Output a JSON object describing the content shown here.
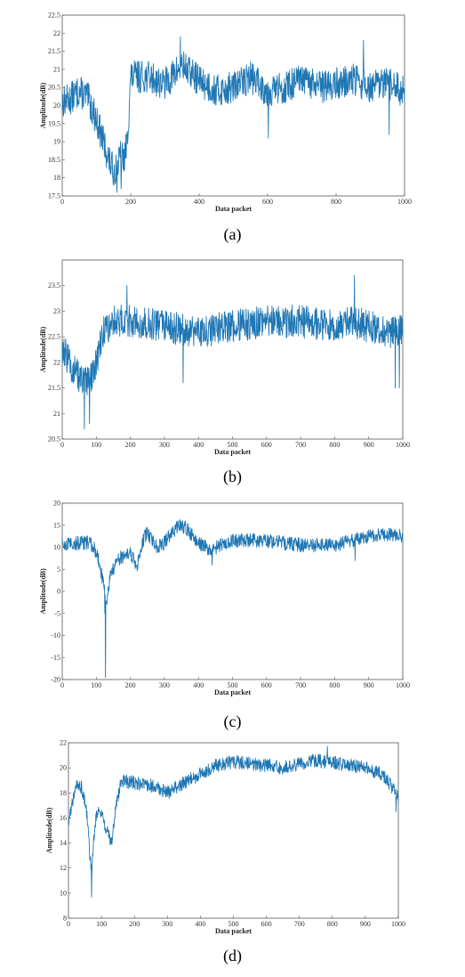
{
  "chart_data": [
    {
      "type": "line",
      "panel_label": "(a)",
      "xlabel": "Data packet",
      "ylabel": "Amplitude(dB)",
      "xlim": [
        0,
        1000
      ],
      "ylim": [
        17.5,
        22.5
      ],
      "x_ticks": [
        "0",
        "200",
        "400",
        "600",
        "800",
        "1000"
      ],
      "y_ticks": [
        "17.5",
        "18",
        "18.5",
        "19",
        "19.5",
        "20",
        "20.5",
        "21",
        "21.5",
        "22",
        "22.5"
      ],
      "color": "#1f77b4",
      "x": [
        0,
        25,
        50,
        75,
        100,
        110,
        120,
        130,
        140,
        150,
        160,
        170,
        180,
        190,
        200,
        250,
        300,
        350,
        400,
        450,
        500,
        550,
        600,
        650,
        700,
        750,
        800,
        850,
        900,
        950,
        1000
      ],
      "y": [
        20.1,
        20.2,
        20.4,
        20.2,
        19.6,
        19.3,
        19.0,
        18.7,
        18.4,
        18.2,
        18.3,
        18.6,
        18.5,
        19.0,
        20.8,
        20.8,
        20.6,
        21.1,
        20.7,
        20.4,
        20.5,
        20.8,
        20.4,
        20.5,
        20.7,
        20.5,
        20.6,
        20.7,
        20.5,
        20.6,
        20.4
      ],
      "noise": 0.45,
      "extremes": [
        [
          345,
          21.9
        ],
        [
          160,
          17.6
        ],
        [
          172,
          17.7
        ],
        [
          602,
          19.1
        ],
        [
          955,
          19.2
        ],
        [
          880,
          21.8
        ]
      ]
    },
    {
      "type": "line",
      "panel_label": "(b)",
      "xlabel": "Data packet",
      "ylabel": "Amplitude(dB)",
      "xlim": [
        0,
        1000
      ],
      "ylim": [
        20.5,
        24
      ],
      "x_ticks": [
        "0",
        "100",
        "200",
        "300",
        "400",
        "500",
        "600",
        "700",
        "800",
        "900",
        "1000"
      ],
      "y_ticks": [
        "20.5",
        "21",
        "21.5",
        "22",
        "22.5",
        "23",
        "23.5"
      ],
      "color": "#1f77b4",
      "x": [
        0,
        20,
        40,
        60,
        80,
        100,
        120,
        150,
        200,
        300,
        400,
        500,
        600,
        700,
        800,
        850,
        900,
        950,
        1000
      ],
      "y": [
        22.3,
        22.0,
        21.8,
        21.6,
        21.6,
        22.0,
        22.6,
        22.8,
        22.8,
        22.7,
        22.6,
        22.7,
        22.8,
        22.8,
        22.7,
        22.8,
        22.7,
        22.6,
        22.6
      ],
      "noise": 0.32,
      "extremes": [
        [
          65,
          20.7
        ],
        [
          80,
          20.8
        ],
        [
          858,
          23.7
        ],
        [
          355,
          21.6
        ],
        [
          978,
          21.5
        ],
        [
          990,
          21.5
        ],
        [
          190,
          23.5
        ]
      ]
    },
    {
      "type": "line",
      "panel_label": "(c)",
      "xlabel": "Data packet",
      "ylabel": "Amplitude(dB)",
      "xlim": [
        0,
        1000
      ],
      "ylim": [
        -20,
        20
      ],
      "x_ticks": [
        "0",
        "100",
        "200",
        "300",
        "400",
        "500",
        "600",
        "700",
        "800",
        "900",
        "1000"
      ],
      "y_ticks": [
        "-20",
        "-15",
        "-10",
        "-5",
        "0",
        "5",
        "10",
        "15",
        "20"
      ],
      "color": "#1f77b4",
      "x": [
        0,
        50,
        80,
        100,
        110,
        120,
        130,
        140,
        160,
        180,
        200,
        220,
        240,
        250,
        260,
        280,
        300,
        320,
        340,
        360,
        380,
        400,
        420,
        440,
        460,
        500,
        600,
        700,
        800,
        850,
        900,
        950,
        1000
      ],
      "y": [
        10.5,
        11.0,
        11.0,
        9.0,
        6.0,
        2.0,
        -2.0,
        3.0,
        7.0,
        8.0,
        8.5,
        6.0,
        12.0,
        13.5,
        12.0,
        10.0,
        11.0,
        13.0,
        15.0,
        14.5,
        13.0,
        11.0,
        10.0,
        9.0,
        10.5,
        11.5,
        11.5,
        10.5,
        10.5,
        11.5,
        12.5,
        13.0,
        12.5
      ],
      "noise": 1.6,
      "extremes": [
        [
          127,
          -19.5
        ],
        [
          125,
          -5.0
        ],
        [
          340,
          16.0
        ],
        [
          440,
          6.0
        ],
        [
          860,
          7.0
        ]
      ]
    },
    {
      "type": "line",
      "panel_label": "(d)",
      "xlabel": "Data packet",
      "ylabel": "Amplitude(dB)",
      "xlim": [
        0,
        1000
      ],
      "ylim": [
        8,
        22
      ],
      "x_ticks": [
        "0",
        "100",
        "200",
        "300",
        "400",
        "500",
        "600",
        "700",
        "800",
        "900",
        "1000"
      ],
      "y_ticks": [
        "8",
        "10",
        "12",
        "14",
        "16",
        "18",
        "20",
        "22"
      ],
      "color": "#1f77b4",
      "x": [
        0,
        20,
        40,
        55,
        65,
        70,
        75,
        85,
        100,
        115,
        130,
        145,
        160,
        200,
        250,
        300,
        350,
        400,
        450,
        500,
        550,
        600,
        650,
        700,
        750,
        800,
        850,
        900,
        950,
        980,
        1000
      ],
      "y": [
        15.5,
        18.5,
        18.5,
        16.5,
        13.0,
        11.5,
        14.0,
        16.5,
        16.5,
        15.0,
        14.0,
        17.0,
        19.0,
        18.8,
        18.6,
        18.0,
        18.8,
        19.5,
        20.2,
        20.5,
        20.3,
        20.2,
        20.0,
        20.3,
        20.6,
        20.4,
        20.2,
        20.0,
        19.5,
        18.5,
        17.5
      ],
      "noise": 0.55,
      "extremes": [
        [
          70,
          9.7
        ],
        [
          785,
          21.7
        ],
        [
          993,
          16.5
        ]
      ]
    }
  ]
}
